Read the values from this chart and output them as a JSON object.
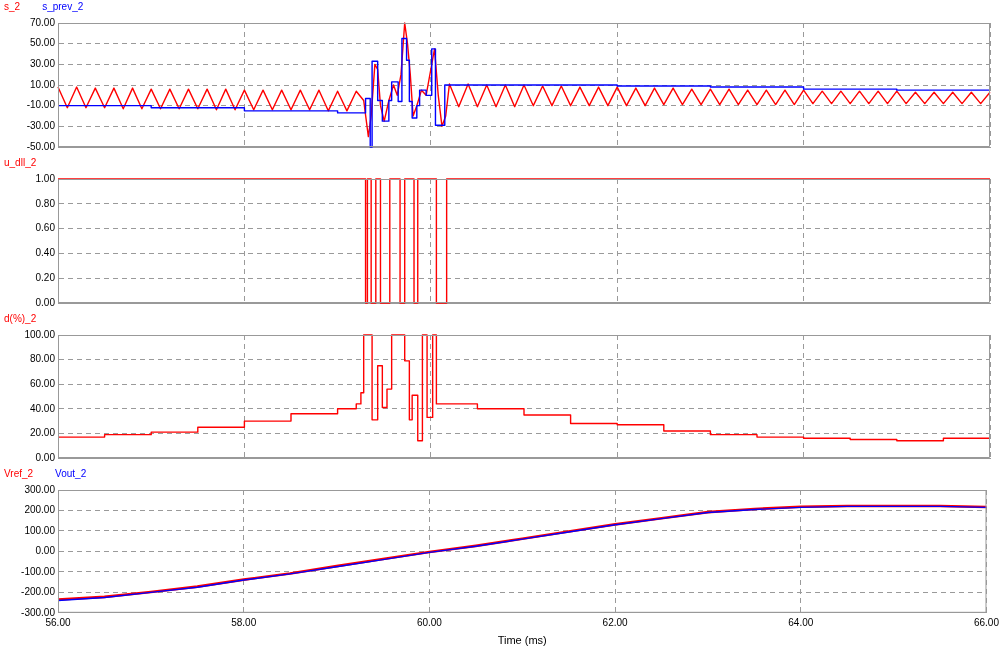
{
  "chart_data": [
    {
      "type": "line",
      "legend": "top left",
      "grid": true,
      "tick_labels": "y",
      "xlim": [
        56,
        66
      ],
      "xticks": [
        {
          "value": 56,
          "label": null
        },
        {
          "value": 58,
          "label": null
        },
        {
          "value": 60,
          "label": null
        },
        {
          "value": 62,
          "label": null
        },
        {
          "value": 64,
          "label": null
        },
        {
          "value": 66,
          "label": null
        }
      ],
      "ylim": [
        -50,
        70
      ],
      "yticks": [
        {
          "value": -50,
          "label": "-50.00"
        },
        {
          "value": -30,
          "label": "-30.00"
        },
        {
          "value": -10,
          "label": "-10.00"
        },
        {
          "value": 10,
          "label": "10.00"
        },
        {
          "value": 30,
          "label": "30.00"
        },
        {
          "value": 50,
          "label": "50.00"
        },
        {
          "value": 70,
          "label": "70.00"
        }
      ],
      "series": [
        {
          "name": "s_2",
          "color": "#ff0000",
          "x": [
            56.0,
            56.1,
            56.2,
            56.3,
            56.4,
            56.5,
            56.6,
            56.7,
            56.8,
            56.9,
            57.0,
            57.1,
            57.2,
            57.3,
            57.4,
            57.5,
            57.6,
            57.7,
            57.8,
            57.9,
            58.0,
            58.1,
            58.2,
            58.3,
            58.4,
            58.5,
            58.6,
            58.7,
            58.8,
            58.9,
            59.0,
            59.1,
            59.2,
            59.28,
            59.33,
            59.36,
            59.4,
            59.43,
            59.46,
            59.5,
            59.55,
            59.6,
            59.64,
            59.68,
            59.72,
            59.75,
            59.78,
            59.81,
            59.85,
            59.9,
            59.95,
            60.0,
            60.04,
            60.08,
            60.12,
            60.16,
            60.2,
            60.3,
            60.4,
            60.5,
            60.6,
            60.7,
            60.8,
            60.9,
            61.0,
            61.1,
            61.2,
            61.3,
            61.4,
            61.5,
            61.6,
            61.7,
            61.8,
            61.9,
            62.0,
            62.1,
            62.2,
            62.3,
            62.4,
            62.5,
            62.6,
            62.7,
            62.8,
            62.9,
            63.0,
            63.1,
            63.2,
            63.3,
            63.4,
            63.5,
            63.6,
            63.7,
            63.8,
            63.9,
            64.0,
            64.1,
            64.2,
            64.3,
            64.4,
            64.5,
            64.6,
            64.7,
            64.8,
            64.9,
            65.0,
            65.1,
            65.2,
            65.3,
            65.4,
            65.5,
            65.6,
            65.7,
            65.8,
            65.9,
            66.0
          ],
          "values": [
            8,
            -12,
            8,
            -12,
            7,
            -12,
            7,
            -13,
            7,
            -13,
            6,
            -13,
            6,
            -13,
            6,
            -13,
            6,
            -14,
            6,
            -14,
            5,
            -14,
            5,
            -14,
            5,
            -14,
            5,
            -14,
            5,
            -15,
            4,
            -15,
            4,
            -5,
            -40,
            -20,
            30,
            25,
            -10,
            -25,
            -5,
            10,
            0,
            20,
            70,
            50,
            20,
            -20,
            -10,
            5,
            0,
            25,
            45,
            0,
            -30,
            -20,
            11,
            -11,
            11,
            -11,
            10,
            -11,
            10,
            -11,
            10,
            -10,
            9,
            -10,
            9,
            -10,
            8,
            -10,
            8,
            -10,
            8,
            -10,
            7,
            -10,
            7,
            -9,
            7,
            -9,
            6,
            -9,
            6,
            -9,
            6,
            -9,
            5,
            -9,
            5,
            -9,
            5,
            -9,
            5,
            -8,
            4,
            -8,
            4,
            -8,
            4,
            -8,
            4,
            -8,
            4,
            -8,
            3,
            -8,
            3,
            -8,
            3,
            -8,
            3,
            -8,
            3
          ]
        },
        {
          "name": "s_prev_2",
          "color": "#0000ff",
          "type": "step",
          "x": [
            56,
            57,
            58,
            59,
            59.3,
            59.35,
            59.37,
            59.43,
            59.48,
            59.55,
            59.58,
            59.65,
            59.69,
            59.74,
            59.77,
            59.8,
            59.85,
            59.88,
            59.95,
            60.01,
            60.05,
            60.15,
            61,
            62,
            63,
            64,
            65,
            66
          ],
          "values": [
            -10,
            -12,
            -15,
            -17,
            -3,
            -50,
            33,
            -5,
            -25,
            -5,
            13,
            -6,
            55,
            34,
            -6,
            -22,
            -10,
            5,
            0,
            45,
            -29,
            10,
            10,
            9,
            8,
            6,
            5,
            5
          ]
        }
      ]
    },
    {
      "type": "step",
      "legend": "top left",
      "grid": true,
      "tick_labels": "y",
      "xlim": [
        56,
        66
      ],
      "xticks": [
        {
          "value": 56,
          "label": null
        },
        {
          "value": 58,
          "label": null
        },
        {
          "value": 60,
          "label": null
        },
        {
          "value": 62,
          "label": null
        },
        {
          "value": 64,
          "label": null
        },
        {
          "value": 66,
          "label": null
        }
      ],
      "ylim": [
        0,
        1
      ],
      "yticks": [
        {
          "value": 0,
          "label": "0.00"
        },
        {
          "value": 0.2,
          "label": "0.20"
        },
        {
          "value": 0.4,
          "label": "0.40"
        },
        {
          "value": 0.6,
          "label": "0.60"
        },
        {
          "value": 0.8,
          "label": "0.80"
        },
        {
          "value": 1,
          "label": "1.00"
        }
      ],
      "series": [
        {
          "name": "u_dll_2",
          "color": "#ff0000",
          "x": [
            56,
            59.3,
            59.32,
            59.36,
            59.41,
            59.46,
            59.56,
            59.67,
            59.72,
            59.82,
            59.86,
            60.06,
            60.17,
            66
          ],
          "values": [
            1,
            0,
            1,
            0,
            1,
            0,
            1,
            0,
            1,
            0,
            1,
            0,
            1,
            1
          ]
        }
      ]
    },
    {
      "type": "step",
      "legend": "top left",
      "grid": true,
      "tick_labels": "y",
      "xlim": [
        56,
        66
      ],
      "xticks": [
        {
          "value": 56,
          "label": null
        },
        {
          "value": 58,
          "label": null
        },
        {
          "value": 60,
          "label": null
        },
        {
          "value": 62,
          "label": null
        },
        {
          "value": 64,
          "label": null
        },
        {
          "value": 66,
          "label": null
        }
      ],
      "ylim": [
        0,
        100
      ],
      "yticks": [
        {
          "value": 0,
          "label": "0.00"
        },
        {
          "value": 20,
          "label": "20.00"
        },
        {
          "value": 40,
          "label": "40.00"
        },
        {
          "value": 60,
          "label": "60.00"
        },
        {
          "value": 80,
          "label": "80.00"
        },
        {
          "value": 100,
          "label": "100.00"
        }
      ],
      "series": [
        {
          "name": "d(%)_2",
          "color": "#ff0000",
          "x": [
            56,
            56.5,
            57,
            57.5,
            58,
            58.5,
            59,
            59.2,
            59.25,
            59.28,
            59.37,
            59.43,
            59.48,
            59.53,
            59.58,
            59.72,
            59.77,
            59.8,
            59.86,
            59.91,
            59.96,
            60.02,
            60.06,
            60.5,
            61,
            61.5,
            62,
            62.5,
            63,
            63.5,
            64,
            64.5,
            65,
            65.5,
            66
          ],
          "values": [
            17,
            19,
            21,
            25,
            30,
            36,
            40,
            44,
            53,
            100,
            31,
            75,
            41,
            56,
            100,
            79,
            31,
            51,
            14,
            100,
            33,
            100,
            44,
            40,
            35,
            28,
            27,
            22,
            19,
            17,
            16,
            15,
            14,
            16,
            16
          ]
        }
      ]
    },
    {
      "type": "line",
      "legend": "top left",
      "grid": true,
      "xlabel": "Time (ms)",
      "xlim": [
        56,
        66
      ],
      "xticks": [
        {
          "value": 56,
          "label": "56.00"
        },
        {
          "value": 58,
          "label": "58.00"
        },
        {
          "value": 60,
          "label": "60.00"
        },
        {
          "value": 62,
          "label": "62.00"
        },
        {
          "value": 64,
          "label": "64.00"
        },
        {
          "value": 66,
          "label": "66.00"
        }
      ],
      "ylim": [
        -300,
        300
      ],
      "yticks": [
        {
          "value": -300,
          "label": "-300.00"
        },
        {
          "value": -200,
          "label": "-200.00"
        },
        {
          "value": -100,
          "label": "-100.00"
        },
        {
          "value": 0,
          "label": "0.00"
        },
        {
          "value": 100,
          "label": "100.00"
        },
        {
          "value": 200,
          "label": "200.00"
        },
        {
          "value": 300,
          "label": "300.00"
        }
      ],
      "x": [
        56,
        56.5,
        57,
        57.5,
        58,
        58.5,
        59,
        59.5,
        60,
        60.5,
        61,
        61.5,
        62,
        62.5,
        63,
        63.5,
        64,
        64.5,
        65,
        65.5,
        66
      ],
      "series": [
        {
          "name": "Vref_2",
          "color": "#ff0000",
          "values": [
            -235,
            -222,
            -198,
            -172,
            -138,
            -108,
            -72,
            -37,
            -3,
            27,
            62,
            97,
            132,
            162,
            192,
            207,
            218,
            222,
            222,
            222,
            217
          ]
        },
        {
          "name": "Vout_2",
          "color": "#0000ff",
          "values": [
            -240,
            -225,
            -200,
            -175,
            -140,
            -110,
            -75,
            -40,
            -5,
            25,
            60,
            95,
            130,
            160,
            190,
            205,
            215,
            220,
            220,
            220,
            215
          ]
        }
      ]
    }
  ]
}
